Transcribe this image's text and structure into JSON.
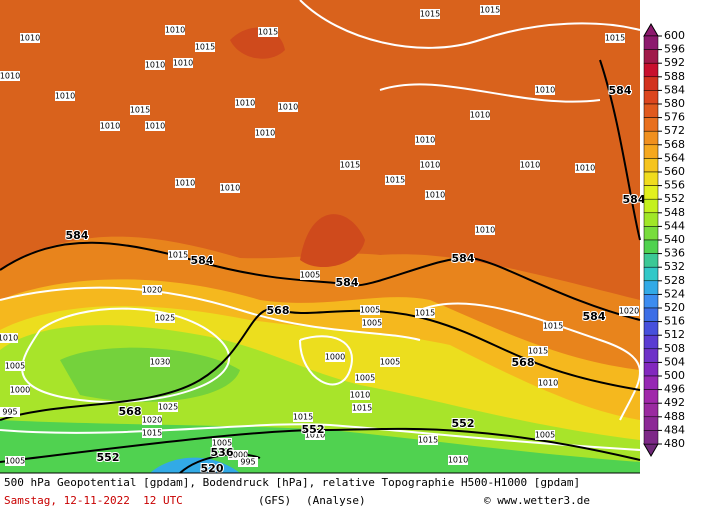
{
  "map": {
    "isobar_labels": [
      "1015",
      "1015",
      "1010",
      "1010",
      "1015",
      "1010",
      "1010",
      "1015",
      "1010",
      "1010",
      "1010",
      "1015",
      "1010",
      "1010",
      "1010",
      "1010",
      "1010",
      "1010",
      "1010",
      "1015",
      "1010",
      "1010",
      "1015",
      "1010",
      "1015",
      "1010",
      "1010",
      "1010",
      "1010",
      "1015",
      "1005",
      "1020",
      "1025",
      "1005",
      "1005",
      "1015",
      "1015",
      "1030",
      "1000",
      "1005",
      "1005",
      "1010",
      "1015",
      "1010",
      "1020",
      "1015",
      "1025",
      "1020",
      "1015",
      "1015",
      "1010",
      "1015",
      "1005",
      "1010",
      "1005",
      "1000",
      "995",
      "1005",
      "995",
      "1000",
      "1005",
      "1010"
    ],
    "height_labels": [
      "584",
      "584",
      "584",
      "584",
      "584",
      "584",
      "568",
      "568",
      "568",
      "552",
      "552",
      "552",
      "536",
      "520",
      "584"
    ]
  },
  "colorbar": {
    "levels": [
      600,
      596,
      592,
      588,
      584,
      580,
      576,
      572,
      568,
      564,
      560,
      556,
      552,
      548,
      544,
      540,
      536,
      532,
      528,
      524,
      520,
      516,
      512,
      508,
      504,
      500,
      496,
      492,
      488,
      484,
      480
    ],
    "colors": [
      "#8c1a6e",
      "#a01a4a",
      "#c8102e",
      "#d2321e",
      "#dc461e",
      "#e05a1e",
      "#e8701e",
      "#f0901e",
      "#f5a81e",
      "#f5c41e",
      "#f0dc1e",
      "#e2f01e",
      "#c4f01e",
      "#a0e628",
      "#78dc3c",
      "#50d250",
      "#3cc896",
      "#32c8c8",
      "#32aae6",
      "#3c8cf0",
      "#3c6ee6",
      "#4650dc",
      "#5a3cd2",
      "#6e32c8",
      "#8228be",
      "#9628b4",
      "#a028aa",
      "#9a2aa0",
      "#8c2896",
      "#7d2888",
      "#6e2878"
    ]
  },
  "footer": {
    "description": "500 hPa Geopotential [gpdam], Bodendruck [hPa], relative Topographie H500-H1000 [gpdam]",
    "date": "Samstag, 12-11-2022  12 UTC",
    "model": "(GFS)",
    "run": "(Analyse)",
    "credit": "© www.wetter3.de"
  }
}
